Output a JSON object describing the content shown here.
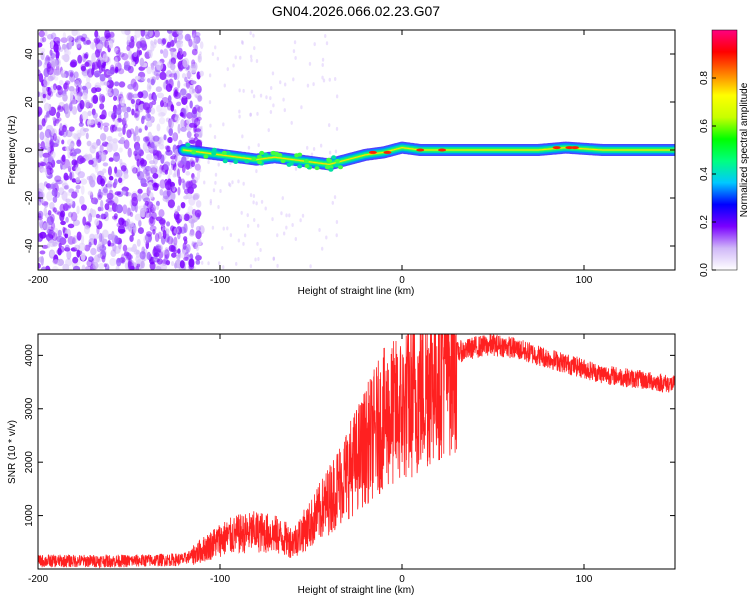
{
  "title": "GN04.2026.066.02.23.G07",
  "chart_data": [
    {
      "type": "heatmap",
      "name": "spectrogram",
      "xlabel": "Height of straight line (km)",
      "ylabel": "Frequency (Hz)",
      "xlim": [
        -200,
        150
      ],
      "ylim": [
        -50,
        50
      ],
      "xticks": [
        -200,
        -100,
        0,
        100
      ],
      "yticks": [
        -40,
        -20,
        0,
        20,
        40
      ],
      "ridge": [
        [
          -120,
          0
        ],
        [
          -110,
          -1
        ],
        [
          -100,
          -2
        ],
        [
          -90,
          -3
        ],
        [
          -80,
          -4
        ],
        [
          -70,
          -3
        ],
        [
          -60,
          -4
        ],
        [
          -50,
          -5
        ],
        [
          -40,
          -6
        ],
        [
          -30,
          -4
        ],
        [
          -20,
          -2
        ],
        [
          -10,
          -1
        ],
        [
          0,
          1
        ],
        [
          10,
          0
        ],
        [
          30,
          0
        ],
        [
          50,
          0
        ],
        [
          75,
          0
        ],
        [
          90,
          1
        ],
        [
          110,
          0
        ],
        [
          150,
          0
        ]
      ],
      "noise_region": [
        -200,
        -115
      ],
      "colorbar": {
        "label": "Normalized spectral amplitude",
        "range": [
          0,
          1
        ],
        "ticks": [
          "0.0",
          "0.2",
          "0.4",
          "0.6",
          "0.8"
        ],
        "colors": [
          "#ffffff",
          "#d0b8f8",
          "#7a00ff",
          "#0000ff",
          "#00c8ff",
          "#00ff80",
          "#00ff00",
          "#c8ff00",
          "#ffff00",
          "#ff8000",
          "#ff0000",
          "#ff0080"
        ]
      }
    },
    {
      "type": "line",
      "name": "snr",
      "xlabel": "Height of straight line (km)",
      "ylabel": "SNR (10 * v/v)",
      "xlim": [
        -200,
        150
      ],
      "ylim": [
        0,
        4400
      ],
      "xticks": [
        -200,
        -100,
        0,
        100
      ],
      "yticks": [
        1000,
        2000,
        3000,
        4000
      ],
      "color": "#ff2020",
      "envelope": [
        [
          -200,
          150
        ],
        [
          -150,
          150
        ],
        [
          -120,
          180
        ],
        [
          -110,
          350
        ],
        [
          -100,
          550
        ],
        [
          -90,
          650
        ],
        [
          -80,
          700
        ],
        [
          -70,
          650
        ],
        [
          -60,
          500
        ],
        [
          -50,
          850
        ],
        [
          -40,
          1300
        ],
        [
          -30,
          1800
        ],
        [
          -20,
          2300
        ],
        [
          -10,
          2800
        ],
        [
          0,
          3000
        ],
        [
          10,
          3300
        ],
        [
          20,
          3800
        ],
        [
          30,
          4050
        ],
        [
          40,
          4150
        ],
        [
          50,
          4200
        ],
        [
          60,
          4150
        ],
        [
          70,
          4050
        ],
        [
          80,
          3950
        ],
        [
          90,
          3850
        ],
        [
          100,
          3750
        ],
        [
          110,
          3650
        ],
        [
          120,
          3600
        ],
        [
          130,
          3550
        ],
        [
          140,
          3500
        ],
        [
          150,
          3450
        ]
      ]
    }
  ]
}
